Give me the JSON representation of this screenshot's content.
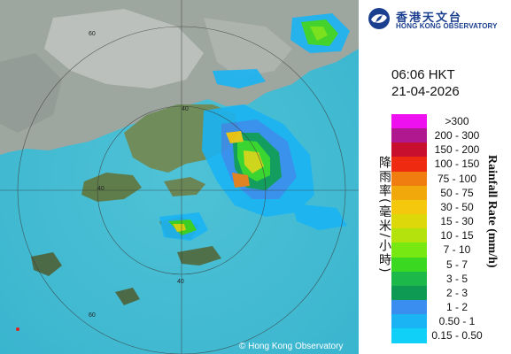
{
  "logo": {
    "name_zh": "香港天文台",
    "name_en": "HONG KONG OBSERVATORY",
    "color": "#1b3f8f"
  },
  "timestamp": {
    "time": "06:06 HKT",
    "date": "21-04-2026"
  },
  "legend": {
    "title_zh": "降雨率(毫米/小時)",
    "title_en": "Rainfall Rate (mm/h)",
    "items": [
      {
        "label": ">300",
        "color": "#ee10ee"
      },
      {
        "label": "200 - 300",
        "color": "#b01890"
      },
      {
        "label": "150 - 200",
        "color": "#c8102e"
      },
      {
        "label": "100 - 150",
        "color": "#ee2a10"
      },
      {
        "label": "75 - 100",
        "color": "#f07d10"
      },
      {
        "label": "50 - 75",
        "color": "#f0a80a"
      },
      {
        "label": "30 - 50",
        "color": "#f4c80c"
      },
      {
        "label": "15 - 30",
        "color": "#dcd80a"
      },
      {
        "label": "10 - 15",
        "color": "#b4e20c"
      },
      {
        "label": "7 - 10",
        "color": "#78e812"
      },
      {
        "label": "5 - 7",
        "color": "#3ad820"
      },
      {
        "label": "3 - 5",
        "color": "#1cb84a"
      },
      {
        "label": "2 - 3",
        "color": "#0e9a52"
      },
      {
        "label": "1 - 2",
        "color": "#3a8ef0"
      },
      {
        "label": "0.50 - 1",
        "color": "#1ab4f4"
      },
      {
        "label": "0.15 - 0.50",
        "color": "#10d0f8"
      }
    ]
  },
  "copyright": "© Hong Kong Observatory",
  "range_rings": [
    "60",
    "40",
    "40",
    "40",
    "60"
  ]
}
